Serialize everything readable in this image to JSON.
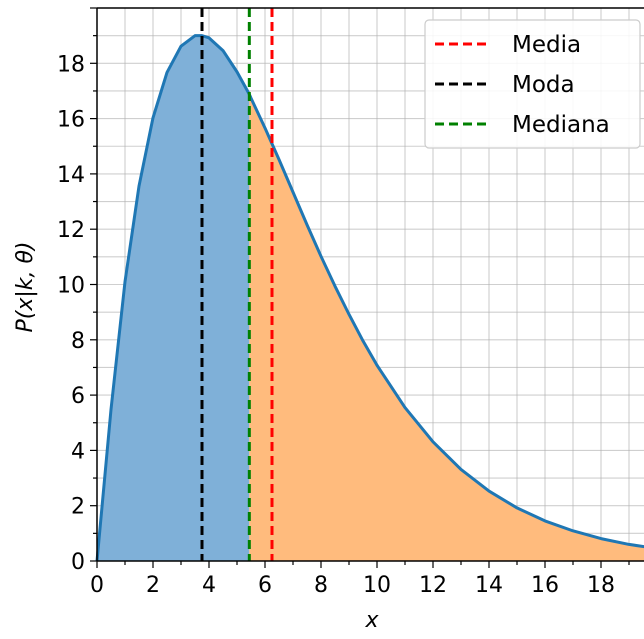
{
  "chart_data": {
    "type": "area",
    "title": "",
    "xlabel": "x",
    "ylabel": "P(x|k, θ)",
    "xlim": [
      0,
      20
    ],
    "ylim": [
      0,
      20
    ],
    "x_ticks": [
      "0",
      "2",
      "4",
      "6",
      "8",
      "10",
      "12",
      "14",
      "16",
      "18"
    ],
    "y_ticks": [
      "0",
      "2",
      "4",
      "6",
      "8",
      "10",
      "12",
      "14",
      "16",
      "18"
    ],
    "grid": true,
    "minor_grid": true,
    "legend_position": "top-right",
    "curve": {
      "x": [
        0,
        0.5,
        1,
        1.5,
        2,
        2.5,
        3,
        3.5,
        3.75,
        4,
        4.5,
        5,
        5.44,
        5.5,
        6,
        6.25,
        6.5,
        7,
        7.5,
        8,
        8.5,
        9,
        9.5,
        10,
        11,
        12,
        13,
        14,
        15,
        16,
        17,
        18,
        19,
        20
      ],
      "y": [
        0,
        5.48,
        10.1,
        13.56,
        16.03,
        17.67,
        18.62,
        19.0,
        19.0,
        18.92,
        18.46,
        17.69,
        16.88,
        16.74,
        15.66,
        15.09,
        14.52,
        13.34,
        12.16,
        11.02,
        9.94,
        8.92,
        7.96,
        7.08,
        5.55,
        4.31,
        3.31,
        2.53,
        1.92,
        1.45,
        1.09,
        0.81,
        0.6,
        0.45
      ]
    },
    "fill_split_x": 5.44,
    "vlines": [
      {
        "name": "Media",
        "x": 6.25,
        "color": "#ff0000"
      },
      {
        "name": "Moda",
        "x": 3.75,
        "color": "#000000"
      },
      {
        "name": "Mediana",
        "x": 5.44,
        "color": "#008000"
      }
    ],
    "colors": {
      "curve": "#1f77b4",
      "fill_left": "#7fb0d8",
      "fill_right": "#ffbb7d",
      "grid": "#b0b0b0"
    }
  }
}
